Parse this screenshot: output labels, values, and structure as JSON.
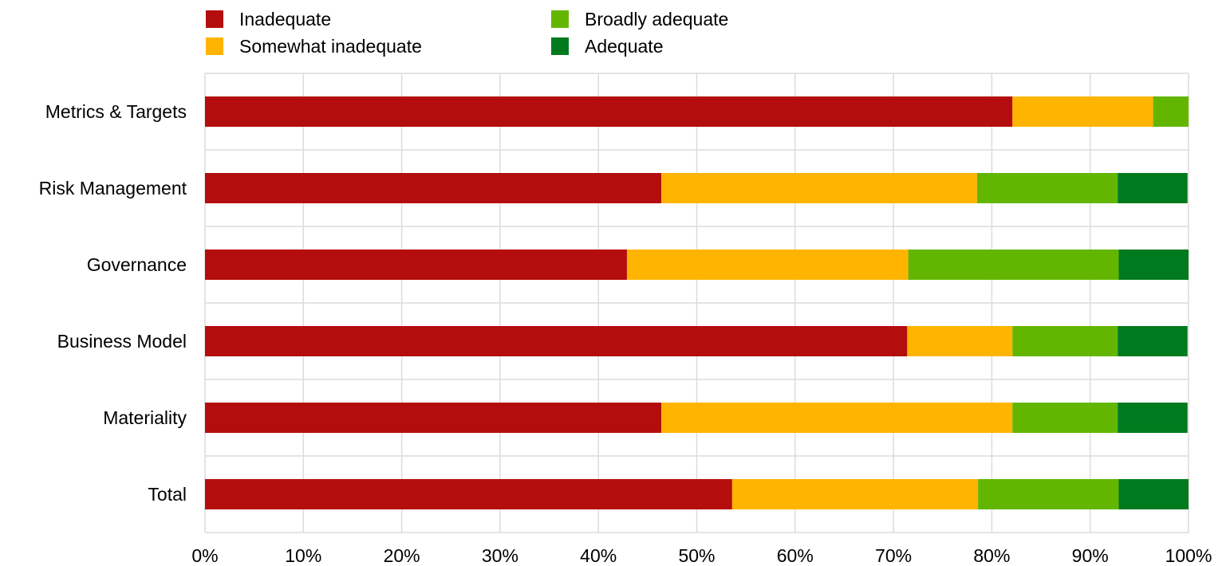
{
  "chart_data": {
    "type": "bar",
    "orientation": "horizontal",
    "stacked": "percent",
    "title": "",
    "xlabel": "",
    "ylabel": "",
    "xlim": [
      0,
      100
    ],
    "grid": true,
    "legend_position": "top",
    "categories": [
      "Metrics & Targets",
      "Risk Management",
      "Governance",
      "Business Model",
      "Materiality",
      "Total"
    ],
    "x_ticks": [
      "0%",
      "10%",
      "20%",
      "30%",
      "40%",
      "50%",
      "60%",
      "70%",
      "80%",
      "90%",
      "100%"
    ],
    "series": [
      {
        "name": "Inadequate",
        "color": "#b40d0d",
        "values": [
          82.1,
          46.4,
          42.9,
          71.4,
          46.4,
          53.6
        ]
      },
      {
        "name": "Somewhat inadequate",
        "color": "#ffb400",
        "values": [
          14.3,
          32.1,
          28.6,
          10.7,
          35.7,
          25.0
        ]
      },
      {
        "name": "Broadly adequate",
        "color": "#63b600",
        "values": [
          3.6,
          14.3,
          21.4,
          10.7,
          10.7,
          14.3
        ]
      },
      {
        "name": "Adequate",
        "color": "#007a1e",
        "values": [
          0.0,
          7.1,
          7.1,
          7.1,
          7.1,
          7.1
        ]
      }
    ]
  }
}
